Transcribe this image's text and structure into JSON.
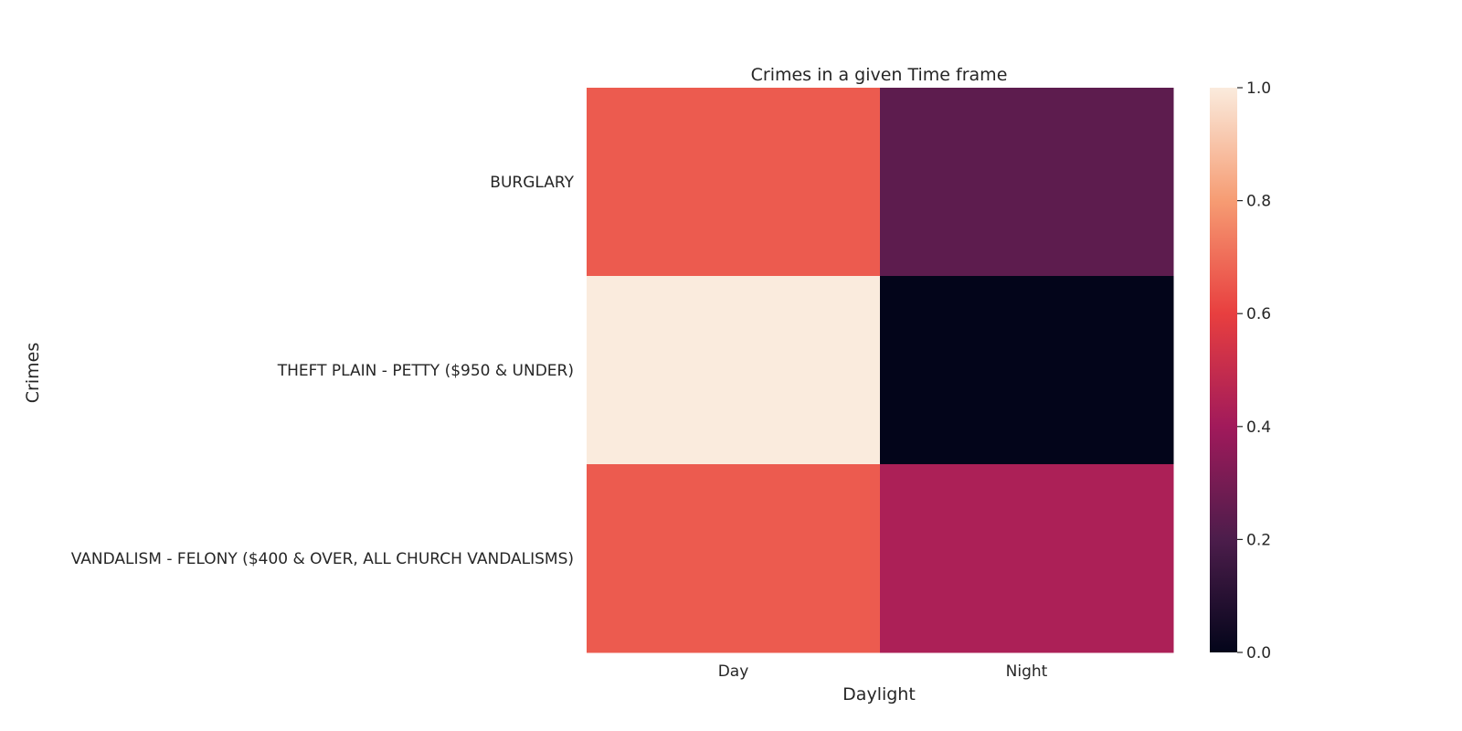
{
  "chart_data": {
    "type": "heatmap",
    "title": "Crimes in a given Time frame",
    "xlabel": "Daylight",
    "ylabel": "Crimes",
    "x_categories": [
      "Day",
      "Night"
    ],
    "y_categories": [
      "BURGLARY",
      "THEFT PLAIN - PETTY ($950 & UNDER)",
      "VANDALISM - FELONY ($400 & OVER, ALL CHURCH VANDALISMS)"
    ],
    "values": [
      [
        0.66,
        0.24
      ],
      [
        1.0,
        0.0
      ],
      [
        0.66,
        0.43
      ]
    ],
    "colorbar": {
      "range": [
        0.0,
        1.0
      ],
      "ticks": [
        "0.0",
        "0.2",
        "0.4",
        "0.6",
        "0.8",
        "1.0"
      ],
      "colormap": "rocket",
      "colors": [
        "#03051a",
        "#4c1d4b",
        "#a11a5b",
        "#e83f3f",
        "#f69c73",
        "#faebdd"
      ]
    },
    "grid": false,
    "legend": "colorbar-right"
  }
}
